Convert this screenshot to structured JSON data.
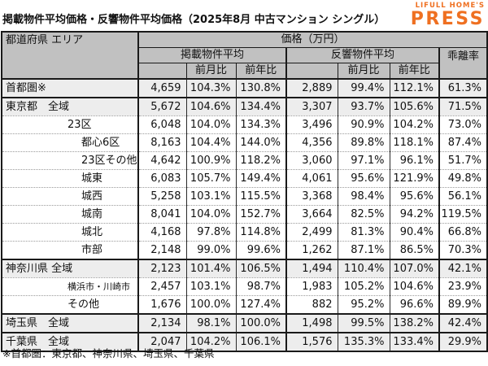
{
  "page": {
    "title": "掲載物件平均価格・反響物件平均価格（2025年8月 中古マンション シングル）",
    "footnote": "※首都圏：東京都、神奈川県、埼玉県、千葉県"
  },
  "logo": {
    "top": "LIFULL HOME'S",
    "main": "PRESS"
  },
  "colors": {
    "logo_orange": "#ef7021",
    "header_bg": "#c1c1c1",
    "shaded_row_bg": "#ededed",
    "border": "#1a1a1a"
  },
  "table": {
    "corner_header": "都道府県 エリア",
    "price_header": "価格（万円）",
    "group_headers": [
      "掲載物件平均",
      "反響物件平均"
    ],
    "sub_headers": [
      "前月比",
      "前年比"
    ],
    "deviation_header": "乖離率"
  },
  "chart_data": {
    "type": "table",
    "title": "掲載物件平均価格・反響物件平均価格（2025年8月 中古マンション シングル）",
    "columns": [
      "都道府県 エリア",
      "掲載物件平均 価格(万円)",
      "掲載 前月比",
      "掲載 前年比",
      "反響物件平均 価格(万円)",
      "反響 前月比",
      "反響 前年比",
      "乖離率"
    ],
    "rows": [
      {
        "label": "首都圏※",
        "indent": 0,
        "shaded": true,
        "group_start": true,
        "small": false,
        "values": [
          "4,659",
          "104.3%",
          "130.8%",
          "2,889",
          "99.4%",
          "112.1%",
          "61.3%"
        ]
      },
      {
        "label": "東京都　全域",
        "indent": 0,
        "shaded": true,
        "group_start": true,
        "small": false,
        "values": [
          "5,672",
          "104.6%",
          "134.4%",
          "3,307",
          "93.7%",
          "105.6%",
          "71.5%"
        ]
      },
      {
        "label": "23区",
        "indent": 1,
        "shaded": false,
        "group_start": false,
        "small": false,
        "values": [
          "6,048",
          "104.0%",
          "134.3%",
          "3,496",
          "90.9%",
          "104.2%",
          "73.0%"
        ]
      },
      {
        "label": "都心6区",
        "indent": 2,
        "shaded": false,
        "group_start": false,
        "small": false,
        "values": [
          "8,163",
          "104.4%",
          "144.0%",
          "4,356",
          "89.8%",
          "118.1%",
          "87.4%"
        ]
      },
      {
        "label": "23区その他",
        "indent": 2,
        "shaded": false,
        "group_start": false,
        "small": false,
        "values": [
          "4,642",
          "100.9%",
          "118.2%",
          "3,060",
          "97.1%",
          "96.1%",
          "51.7%"
        ]
      },
      {
        "label": "城東",
        "indent": 2,
        "shaded": false,
        "group_start": false,
        "small": false,
        "values": [
          "6,083",
          "105.7%",
          "149.4%",
          "4,061",
          "95.6%",
          "121.9%",
          "49.8%"
        ]
      },
      {
        "label": "城西",
        "indent": 2,
        "shaded": false,
        "group_start": false,
        "small": false,
        "values": [
          "5,258",
          "103.1%",
          "115.5%",
          "3,368",
          "98.4%",
          "95.6%",
          "56.1%"
        ]
      },
      {
        "label": "城南",
        "indent": 2,
        "shaded": false,
        "group_start": false,
        "small": false,
        "values": [
          "8,041",
          "104.0%",
          "152.7%",
          "3,664",
          "82.5%",
          "94.2%",
          "119.5%"
        ]
      },
      {
        "label": "城北",
        "indent": 2,
        "shaded": false,
        "group_start": false,
        "small": false,
        "values": [
          "4,168",
          "97.8%",
          "114.8%",
          "2,499",
          "81.3%",
          "90.4%",
          "66.8%"
        ]
      },
      {
        "label": "市部",
        "indent": 2,
        "shaded": false,
        "group_start": false,
        "small": false,
        "values": [
          "2,148",
          "99.0%",
          "99.6%",
          "1,262",
          "87.1%",
          "86.5%",
          "70.3%"
        ]
      },
      {
        "label": "神奈川県 全域",
        "indent": 0,
        "shaded": true,
        "group_start": true,
        "small": false,
        "values": [
          "2,123",
          "101.4%",
          "106.5%",
          "1,494",
          "110.4%",
          "107.0%",
          "42.1%"
        ]
      },
      {
        "label": "横浜市・川崎市",
        "indent": 1,
        "shaded": false,
        "group_start": false,
        "small": true,
        "values": [
          "2,457",
          "103.1%",
          "98.7%",
          "1,983",
          "105.2%",
          "104.6%",
          "23.9%"
        ]
      },
      {
        "label": "その他",
        "indent": 1,
        "shaded": false,
        "group_start": false,
        "small": false,
        "values": [
          "1,676",
          "100.0%",
          "127.4%",
          "882",
          "95.2%",
          "96.6%",
          "89.9%"
        ]
      },
      {
        "label": "埼玉県　全域",
        "indent": 0,
        "shaded": true,
        "group_start": true,
        "small": false,
        "values": [
          "2,134",
          "98.1%",
          "100.0%",
          "1,498",
          "99.5%",
          "138.2%",
          "42.4%"
        ]
      },
      {
        "label": "千葉県　全域",
        "indent": 0,
        "shaded": true,
        "group_start": true,
        "small": false,
        "values": [
          "2,047",
          "104.2%",
          "106.1%",
          "1,576",
          "135.3%",
          "133.4%",
          "29.9%"
        ]
      }
    ]
  }
}
